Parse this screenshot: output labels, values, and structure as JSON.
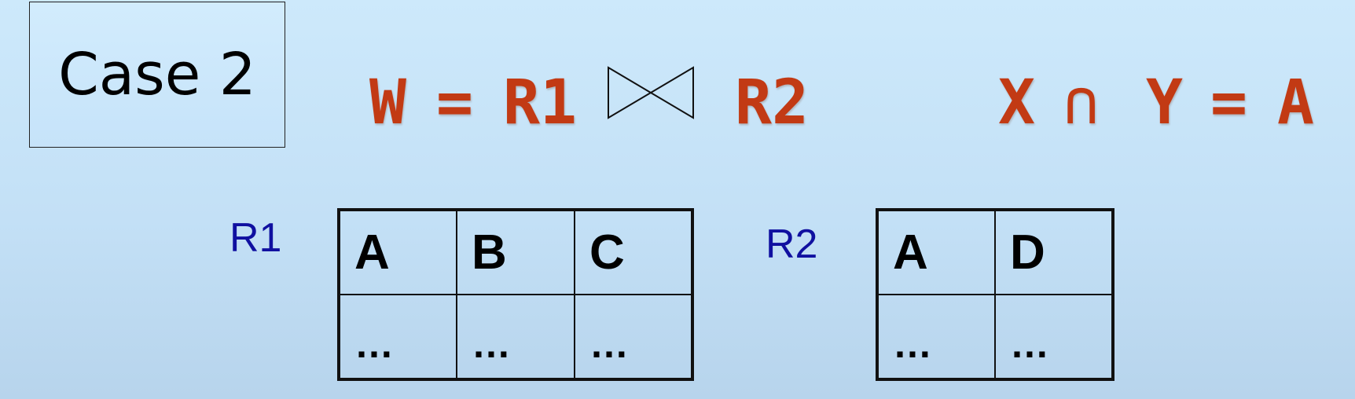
{
  "case_label": "Case 2",
  "formula_left": {
    "lhs": "W",
    "equals": "=",
    "r1": "R1",
    "r2": "R2"
  },
  "join_icon": "natural-join-bowtie-icon",
  "formula_right": {
    "x": "X",
    "intersect": "∩",
    "y": "Y",
    "equals": "=",
    "a": "A"
  },
  "colors": {
    "formula": "#c23a14",
    "relation_label": "#1010a0"
  },
  "relations": [
    {
      "name": "R1",
      "columns": [
        "A",
        "B",
        "C"
      ],
      "rows": [
        [
          "…",
          "…",
          "…"
        ]
      ]
    },
    {
      "name": "R2",
      "columns": [
        "A",
        "D"
      ],
      "rows": [
        [
          "…",
          "…"
        ]
      ]
    }
  ]
}
